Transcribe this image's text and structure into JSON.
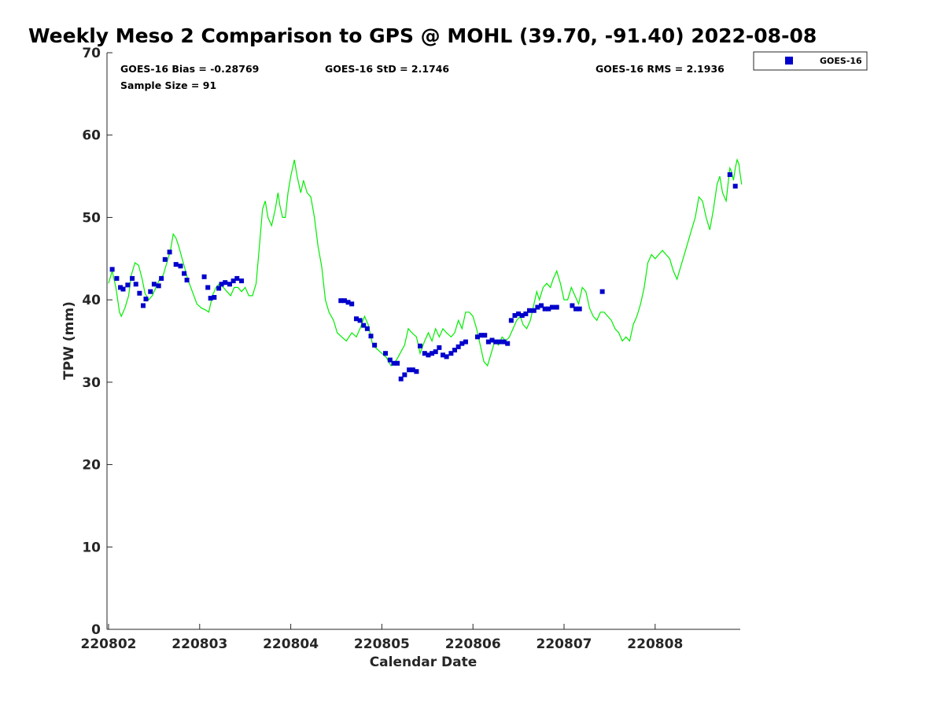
{
  "chart_data": {
    "type": "scatter",
    "title": "Weekly Meso 2 Comparison to GPS @ MOHL (39.70, -91.40) 2022-08-08",
    "xlabel": "Calendar Date",
    "ylabel": "TPW (mm)",
    "ylim": [
      0,
      70
    ],
    "xlim": [
      0,
      6.95
    ],
    "yticks": [
      0,
      10,
      20,
      30,
      40,
      50,
      60,
      70
    ],
    "xtick_positions": [
      0,
      1,
      2,
      3,
      4,
      5,
      6
    ],
    "xticks": [
      "220802",
      "220803",
      "220804",
      "220805",
      "220806",
      "220807",
      "220808"
    ],
    "grid": false,
    "legend": {
      "placement": "outside-top-right",
      "entries": [
        "GOES-16"
      ]
    },
    "stats": {
      "bias": "GOES-16 Bias = -0.28769",
      "std": "GOES-16 StD = 2.1746",
      "rms": "GOES-16 RMS = 2.1936",
      "sample": "Sample Size = 91"
    },
    "series": [
      {
        "name": "GOES-16",
        "kind": "scatter",
        "color": "#0000cc",
        "points": [
          [
            0.04,
            43.7
          ],
          [
            0.09,
            42.6
          ],
          [
            0.13,
            41.5
          ],
          [
            0.16,
            41.3
          ],
          [
            0.21,
            41.8
          ],
          [
            0.26,
            42.6
          ],
          [
            0.3,
            41.9
          ],
          [
            0.34,
            40.8
          ],
          [
            0.38,
            39.3
          ],
          [
            0.41,
            40.1
          ],
          [
            0.46,
            41.0
          ],
          [
            0.5,
            41.9
          ],
          [
            0.55,
            41.7
          ],
          [
            0.58,
            42.6
          ],
          [
            0.62,
            44.9
          ],
          [
            0.67,
            45.8
          ],
          [
            0.74,
            44.3
          ],
          [
            0.79,
            44.1
          ],
          [
            0.83,
            43.2
          ],
          [
            0.86,
            42.4
          ],
          [
            1.05,
            42.8
          ],
          [
            1.09,
            41.5
          ],
          [
            1.12,
            40.2
          ],
          [
            1.16,
            40.3
          ],
          [
            1.21,
            41.4
          ],
          [
            1.24,
            41.9
          ],
          [
            1.28,
            42.1
          ],
          [
            1.33,
            41.9
          ],
          [
            1.37,
            42.3
          ],
          [
            1.41,
            42.6
          ],
          [
            1.46,
            42.3
          ],
          [
            2.55,
            39.9
          ],
          [
            2.59,
            39.9
          ],
          [
            2.63,
            39.7
          ],
          [
            2.67,
            39.5
          ],
          [
            2.72,
            37.7
          ],
          [
            2.76,
            37.5
          ],
          [
            2.8,
            36.9
          ],
          [
            2.84,
            36.5
          ],
          [
            2.88,
            35.6
          ],
          [
            2.92,
            34.5
          ],
          [
            3.04,
            33.5
          ],
          [
            3.09,
            32.7
          ],
          [
            3.13,
            32.3
          ],
          [
            3.17,
            32.3
          ],
          [
            3.21,
            30.4
          ],
          [
            3.25,
            30.9
          ],
          [
            3.3,
            31.5
          ],
          [
            3.34,
            31.5
          ],
          [
            3.38,
            31.3
          ],
          [
            3.42,
            34.4
          ],
          [
            3.47,
            33.5
          ],
          [
            3.51,
            33.3
          ],
          [
            3.55,
            33.5
          ],
          [
            3.59,
            33.7
          ],
          [
            3.63,
            34.2
          ],
          [
            3.67,
            33.3
          ],
          [
            3.71,
            33.1
          ],
          [
            3.76,
            33.5
          ],
          [
            3.8,
            33.9
          ],
          [
            3.84,
            34.3
          ],
          [
            3.88,
            34.7
          ],
          [
            3.92,
            34.9
          ],
          [
            4.05,
            35.5
          ],
          [
            4.09,
            35.7
          ],
          [
            4.13,
            35.7
          ],
          [
            4.17,
            34.9
          ],
          [
            4.21,
            35.1
          ],
          [
            4.25,
            34.9
          ],
          [
            4.29,
            34.9
          ],
          [
            4.34,
            34.9
          ],
          [
            4.38,
            34.7
          ],
          [
            4.42,
            37.5
          ],
          [
            4.46,
            38.1
          ],
          [
            4.5,
            38.3
          ],
          [
            4.54,
            38.1
          ],
          [
            4.58,
            38.3
          ],
          [
            4.62,
            38.7
          ],
          [
            4.67,
            38.7
          ],
          [
            4.71,
            39.1
          ],
          [
            4.75,
            39.3
          ],
          [
            4.79,
            38.9
          ],
          [
            4.83,
            38.9
          ],
          [
            4.87,
            39.1
          ],
          [
            4.92,
            39.1
          ],
          [
            5.09,
            39.3
          ],
          [
            5.13,
            38.9
          ],
          [
            5.17,
            38.9
          ],
          [
            5.42,
            41.0
          ],
          [
            6.82,
            55.2
          ],
          [
            6.88,
            53.8
          ]
        ]
      },
      {
        "name": "GPS",
        "kind": "line",
        "color": "#00ee00",
        "points": [
          [
            0.0,
            42.0
          ],
          [
            0.04,
            43.5
          ],
          [
            0.08,
            41.5
          ],
          [
            0.12,
            38.5
          ],
          [
            0.14,
            38.0
          ],
          [
            0.18,
            39.0
          ],
          [
            0.22,
            40.5
          ],
          [
            0.25,
            43.0
          ],
          [
            0.29,
            44.5
          ],
          [
            0.33,
            44.2
          ],
          [
            0.37,
            42.5
          ],
          [
            0.4,
            40.8
          ],
          [
            0.44,
            40.0
          ],
          [
            0.48,
            40.5
          ],
          [
            0.52,
            41.5
          ],
          [
            0.56,
            42.5
          ],
          [
            0.6,
            43.0
          ],
          [
            0.64,
            44.5
          ],
          [
            0.68,
            46.0
          ],
          [
            0.71,
            48.0
          ],
          [
            0.74,
            47.5
          ],
          [
            0.77,
            46.5
          ],
          [
            0.82,
            44.5
          ],
          [
            0.87,
            42.5
          ],
          [
            0.92,
            41.0
          ],
          [
            0.97,
            39.5
          ],
          [
            1.02,
            39.0
          ],
          [
            1.06,
            38.8
          ],
          [
            1.1,
            38.5
          ],
          [
            1.14,
            40.5
          ],
          [
            1.18,
            41.5
          ],
          [
            1.22,
            42.0
          ],
          [
            1.26,
            41.5
          ],
          [
            1.3,
            41.0
          ],
          [
            1.34,
            40.5
          ],
          [
            1.38,
            41.5
          ],
          [
            1.42,
            41.5
          ],
          [
            1.46,
            41.0
          ],
          [
            1.5,
            41.5
          ],
          [
            1.54,
            40.5
          ],
          [
            1.58,
            40.5
          ],
          [
            1.62,
            42.0
          ],
          [
            1.66,
            47.0
          ],
          [
            1.69,
            51.0
          ],
          [
            1.72,
            52.0
          ],
          [
            1.75,
            50.0
          ],
          [
            1.79,
            49.0
          ],
          [
            1.83,
            51.0
          ],
          [
            1.86,
            53.0
          ],
          [
            1.88,
            51.5
          ],
          [
            1.91,
            50.0
          ],
          [
            1.94,
            50.0
          ],
          [
            1.97,
            53.0
          ],
          [
            2.0,
            55.0
          ],
          [
            2.04,
            57.0
          ],
          [
            2.07,
            55.0
          ],
          [
            2.11,
            53.0
          ],
          [
            2.14,
            54.5
          ],
          [
            2.18,
            53.0
          ],
          [
            2.22,
            52.5
          ],
          [
            2.26,
            50.0
          ],
          [
            2.3,
            46.5
          ],
          [
            2.34,
            44.0
          ],
          [
            2.38,
            40.0
          ],
          [
            2.42,
            38.5
          ],
          [
            2.47,
            37.5
          ],
          [
            2.51,
            36.0
          ],
          [
            2.56,
            35.5
          ],
          [
            2.61,
            35.0
          ],
          [
            2.67,
            36.0
          ],
          [
            2.72,
            35.5
          ],
          [
            2.76,
            36.5
          ],
          [
            2.81,
            38.0
          ],
          [
            2.85,
            37.0
          ],
          [
            2.9,
            34.5
          ],
          [
            2.95,
            34.0
          ],
          [
            3.0,
            33.5
          ],
          [
            3.05,
            33.0
          ],
          [
            3.1,
            32.0
          ],
          [
            3.15,
            32.5
          ],
          [
            3.2,
            33.5
          ],
          [
            3.25,
            34.5
          ],
          [
            3.29,
            36.5
          ],
          [
            3.33,
            36.0
          ],
          [
            3.38,
            35.5
          ],
          [
            3.42,
            33.5
          ],
          [
            3.47,
            35.0
          ],
          [
            3.51,
            36.0
          ],
          [
            3.55,
            35.0
          ],
          [
            3.59,
            36.5
          ],
          [
            3.63,
            35.5
          ],
          [
            3.67,
            36.5
          ],
          [
            3.71,
            36.0
          ],
          [
            3.76,
            35.5
          ],
          [
            3.8,
            36.0
          ],
          [
            3.84,
            37.5
          ],
          [
            3.88,
            36.5
          ],
          [
            3.92,
            38.5
          ],
          [
            3.96,
            38.5
          ],
          [
            4.0,
            38.0
          ],
          [
            4.04,
            36.5
          ],
          [
            4.08,
            34.5
          ],
          [
            4.12,
            32.5
          ],
          [
            4.16,
            32.0
          ],
          [
            4.2,
            33.5
          ],
          [
            4.24,
            35.0
          ],
          [
            4.28,
            34.5
          ],
          [
            4.32,
            35.5
          ],
          [
            4.36,
            35.0
          ],
          [
            4.4,
            35.5
          ],
          [
            4.44,
            36.5
          ],
          [
            4.48,
            37.5
          ],
          [
            4.52,
            38.0
          ],
          [
            4.55,
            37.0
          ],
          [
            4.59,
            36.5
          ],
          [
            4.63,
            37.5
          ],
          [
            4.67,
            39.5
          ],
          [
            4.7,
            41.0
          ],
          [
            4.73,
            40.0
          ],
          [
            4.77,
            41.5
          ],
          [
            4.81,
            42.0
          ],
          [
            4.85,
            41.5
          ],
          [
            4.88,
            42.5
          ],
          [
            4.92,
            43.5
          ],
          [
            4.96,
            42.0
          ],
          [
            5.0,
            40.0
          ],
          [
            5.04,
            40.0
          ],
          [
            5.08,
            41.5
          ],
          [
            5.12,
            40.5
          ],
          [
            5.16,
            39.5
          ],
          [
            5.2,
            41.5
          ],
          [
            5.24,
            41.0
          ],
          [
            5.28,
            39.0
          ],
          [
            5.32,
            38.0
          ],
          [
            5.36,
            37.5
          ],
          [
            5.4,
            38.5
          ],
          [
            5.44,
            38.5
          ],
          [
            5.48,
            38.0
          ],
          [
            5.52,
            37.5
          ],
          [
            5.56,
            36.5
          ],
          [
            5.6,
            36.0
          ],
          [
            5.64,
            35.0
          ],
          [
            5.68,
            35.5
          ],
          [
            5.72,
            35.0
          ],
          [
            5.76,
            37.0
          ],
          [
            5.8,
            38.0
          ],
          [
            5.84,
            39.5
          ],
          [
            5.88,
            41.5
          ],
          [
            5.92,
            44.5
          ],
          [
            5.96,
            45.5
          ],
          [
            6.0,
            45.0
          ],
          [
            6.04,
            45.5
          ],
          [
            6.08,
            46.0
          ],
          [
            6.12,
            45.5
          ],
          [
            6.16,
            45.0
          ],
          [
            6.2,
            43.5
          ],
          [
            6.24,
            42.5
          ],
          [
            6.28,
            44.0
          ],
          [
            6.32,
            45.5
          ],
          [
            6.36,
            47.0
          ],
          [
            6.4,
            48.5
          ],
          [
            6.44,
            50.0
          ],
          [
            6.48,
            52.5
          ],
          [
            6.52,
            52.0
          ],
          [
            6.56,
            50.0
          ],
          [
            6.6,
            48.5
          ],
          [
            6.64,
            51.0
          ],
          [
            6.68,
            54.0
          ],
          [
            6.71,
            55.0
          ],
          [
            6.74,
            53.0
          ],
          [
            6.78,
            52.0
          ],
          [
            6.8,
            54.0
          ],
          [
            6.82,
            56.0
          ],
          [
            6.84,
            55.5
          ],
          [
            6.86,
            54.5
          ],
          [
            6.88,
            56.0
          ],
          [
            6.9,
            57.0
          ],
          [
            6.92,
            56.5
          ],
          [
            6.93,
            55.5
          ],
          [
            6.95,
            54.0
          ]
        ]
      }
    ]
  }
}
